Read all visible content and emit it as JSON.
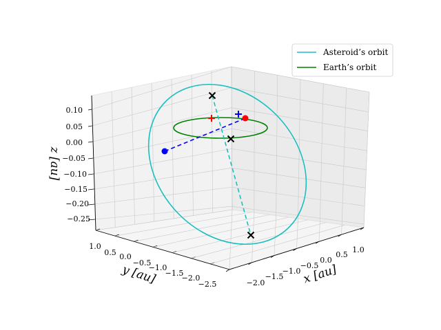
{
  "chart_data": {
    "type": "line",
    "subtype": "3d",
    "xlabel": "x [au]",
    "ylabel": "y [au]",
    "zlabel": "z [au]",
    "x_ticks": [
      "−2.0",
      "−1.5",
      "−1.0",
      "−0.5",
      "0.0",
      "0.5",
      "1.0"
    ],
    "y_ticks": [
      "1.0",
      "0.5",
      "0.0",
      "−0.5",
      "−1.0",
      "−1.5",
      "−2.0",
      "−2.5"
    ],
    "z_ticks": [
      "0.10",
      "0.05",
      "0.00",
      "−0.05",
      "−0.10",
      "−0.15",
      "−0.20",
      "−0.25"
    ],
    "grid": true,
    "legend_position": "top-right",
    "series": [
      {
        "name": "Asteroid’s orbit",
        "color": "#17becf"
      },
      {
        "name": "Earth’s orbit",
        "color": "#008000"
      }
    ],
    "colors": {
      "asteroid": "#1abfbf",
      "earth": "#008000",
      "sun_marker": "#0000ff",
      "earth_marker": "#ff0000",
      "connector": "#0000ff",
      "node_marker": "#000000"
    }
  }
}
